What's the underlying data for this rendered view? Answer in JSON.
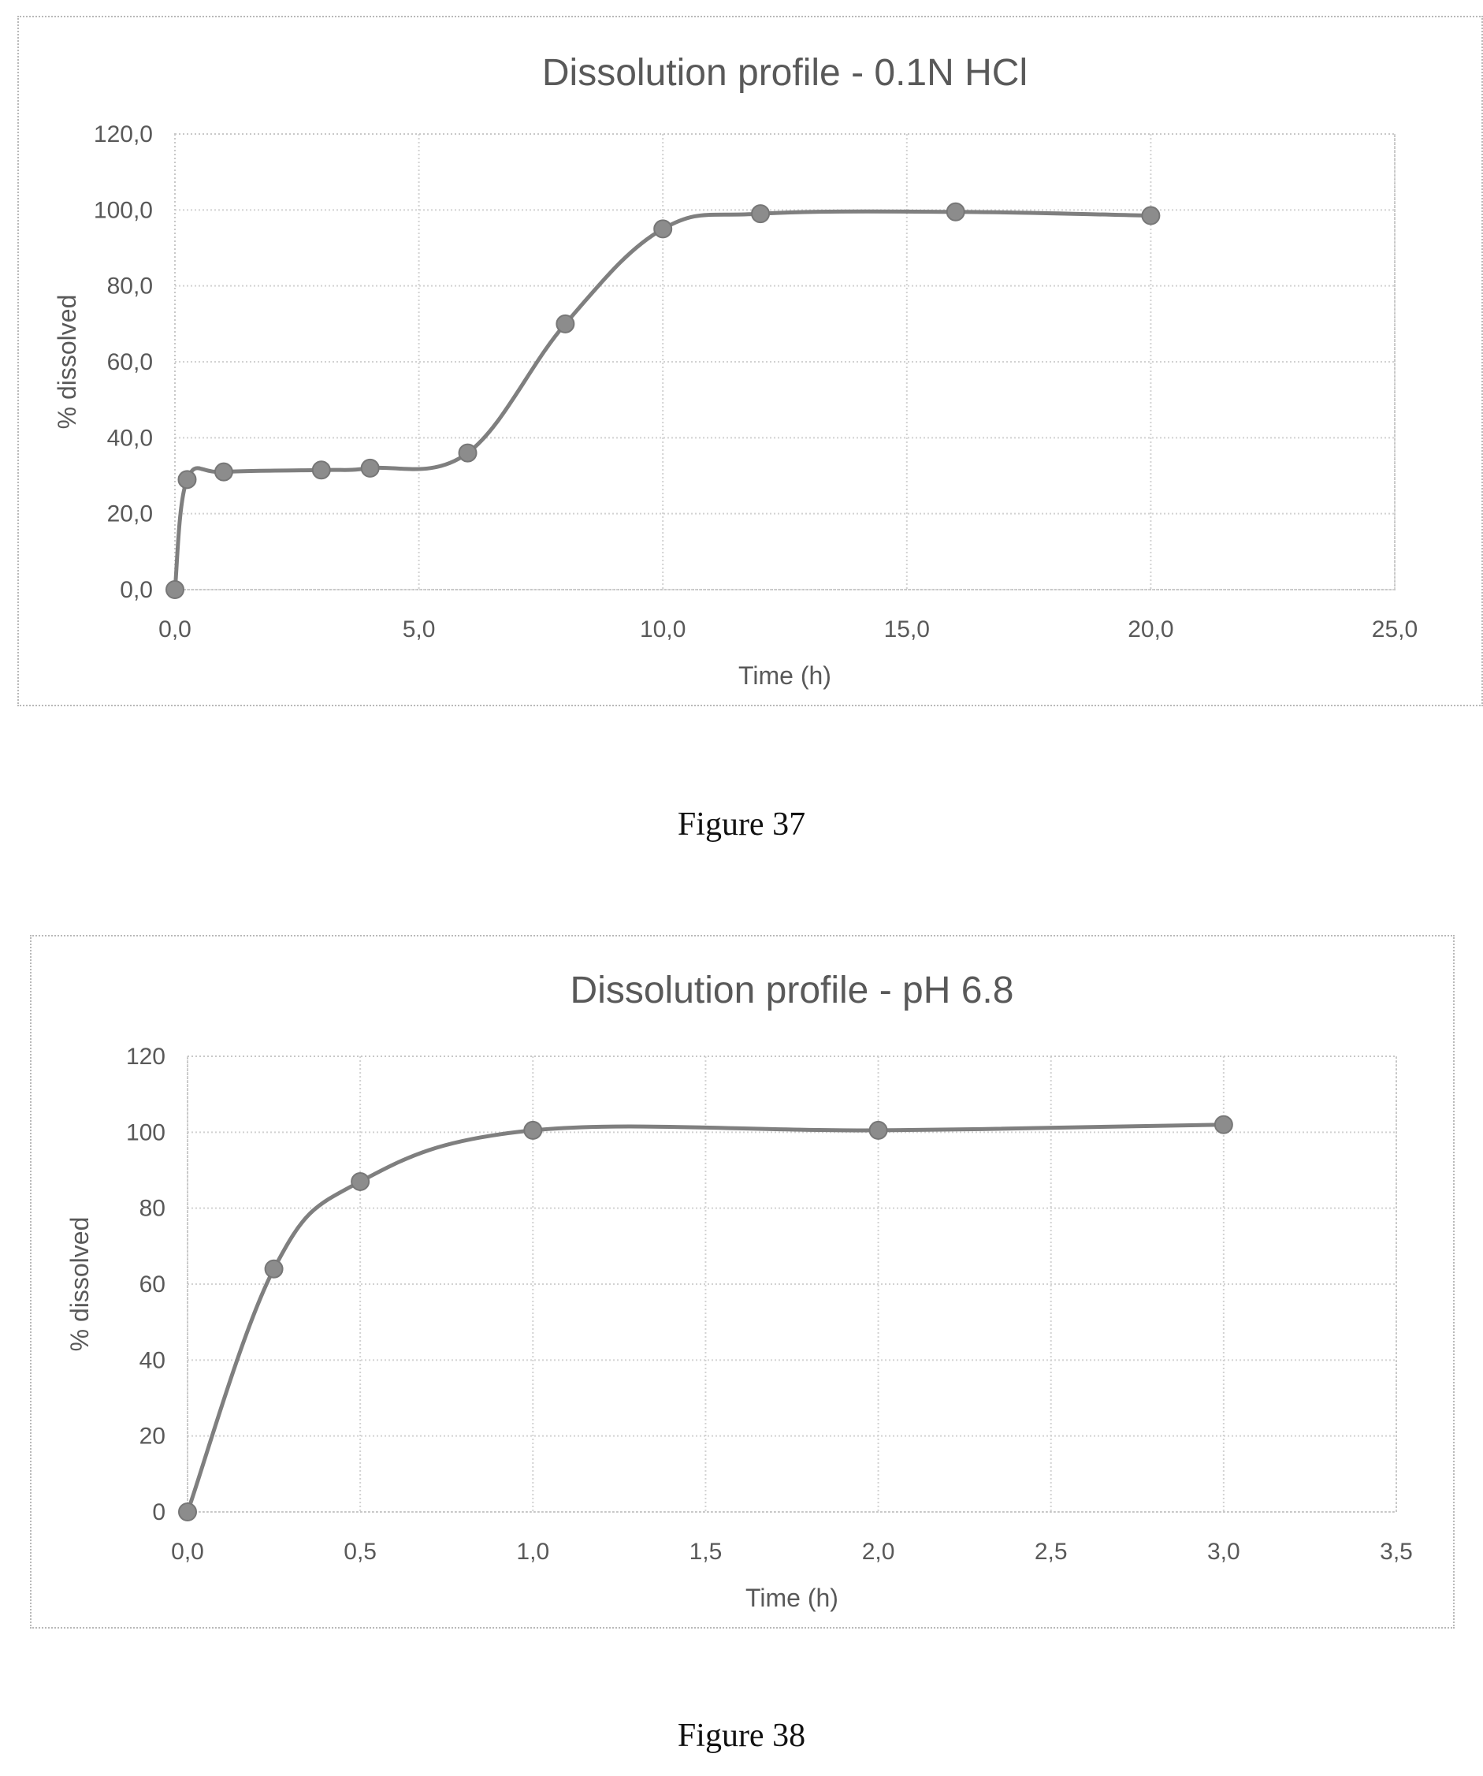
{
  "chart_data": [
    {
      "type": "line",
      "title": "Dissolution profile - 0.1N HCl",
      "xlabel": "Time (h)",
      "ylabel": "% dissolved",
      "xlim": [
        0,
        25
      ],
      "ylim": [
        0,
        120
      ],
      "x_ticks": [
        "0,0",
        "5,0",
        "10,0",
        "15,0",
        "20,0",
        "25,0"
      ],
      "y_ticks": [
        "0,0",
        "20,0",
        "40,0",
        "60,0",
        "80,0",
        "100,0",
        "120,0"
      ],
      "grid": true,
      "smooth": true,
      "series": [
        {
          "x": [
            0,
            0.25,
            1,
            3,
            4,
            6,
            8,
            10,
            12,
            16,
            20
          ],
          "y": [
            0,
            29,
            31,
            31.5,
            32,
            36,
            70,
            95,
            99,
            99.5,
            98.5
          ]
        }
      ]
    },
    {
      "type": "line",
      "title": "Dissolution profile - pH 6.8",
      "xlabel": "Time (h)",
      "ylabel": "% dissolved",
      "xlim": [
        0,
        3.5
      ],
      "ylim": [
        0,
        120
      ],
      "x_ticks": [
        "0,0",
        "0,5",
        "1,0",
        "1,5",
        "2,0",
        "2,5",
        "3,0",
        "3,5"
      ],
      "y_ticks": [
        "0",
        "20",
        "40",
        "60",
        "80",
        "100",
        "120"
      ],
      "grid": true,
      "smooth": true,
      "series": [
        {
          "x": [
            0,
            0.25,
            0.5,
            1,
            2,
            3
          ],
          "y": [
            0,
            64,
            87,
            100.5,
            100.5,
            102
          ]
        }
      ]
    }
  ],
  "captions": {
    "figure37": "Figure 37",
    "figure38": "Figure 38"
  },
  "colors": {
    "series": "#7f7f7f",
    "marker": "#8c8c8c",
    "text": "#595959",
    "grid": "#d2d2d2"
  }
}
